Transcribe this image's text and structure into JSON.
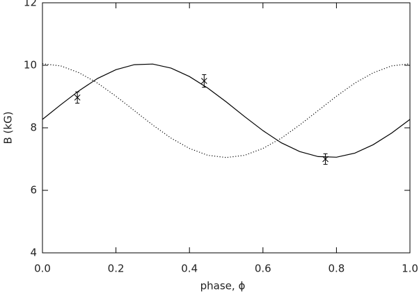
{
  "chart_data": {
    "type": "line",
    "x_label": "phase, ϕ",
    "y_label": "B (kG)",
    "xlim": [
      0,
      1
    ],
    "ylim": [
      4,
      12
    ],
    "xticks": [
      {
        "value": 0,
        "label": "0.0"
      },
      {
        "value": 0.2,
        "label": "0.2"
      },
      {
        "value": 0.4,
        "label": "0.4"
      },
      {
        "value": 0.6,
        "label": "0.6"
      },
      {
        "value": 0.8,
        "label": "0.8"
      },
      {
        "value": 1,
        "label": "1.0"
      }
    ],
    "yticks": [
      4,
      6,
      8,
      10,
      12
    ],
    "x": [
      0,
      0.05,
      0.1,
      0.15,
      0.2,
      0.25,
      0.3,
      0.35,
      0.4,
      0.45,
      0.5,
      0.55,
      0.6,
      0.65,
      0.7,
      0.75,
      0.8,
      0.85,
      0.9,
      0.95,
      1
    ],
    "series": [
      {
        "color": "#000000",
        "dash": "solid",
        "values": [
          8.27,
          8.74,
          9.19,
          9.58,
          9.86,
          10.02,
          10.04,
          9.91,
          9.64,
          9.27,
          8.83,
          8.36,
          7.91,
          7.52,
          7.24,
          7.08,
          7.06,
          7.19,
          7.46,
          7.83,
          8.27
        ]
      },
      {
        "color": "#000000",
        "dash": "dotted",
        "values": [
          10.05,
          9.98,
          9.76,
          9.43,
          9.01,
          8.55,
          8.09,
          7.67,
          7.34,
          7.12,
          7.05,
          7.12,
          7.34,
          7.67,
          8.09,
          8.55,
          9.01,
          9.43,
          9.76,
          9.98,
          10.05
        ]
      }
    ],
    "points": {
      "color": "#000000",
      "x": [
        0.095,
        0.44,
        0.77
      ],
      "values": [
        8.97,
        9.5,
        7.0
      ],
      "errors": [
        0.18,
        0.2,
        0.17
      ]
    }
  }
}
